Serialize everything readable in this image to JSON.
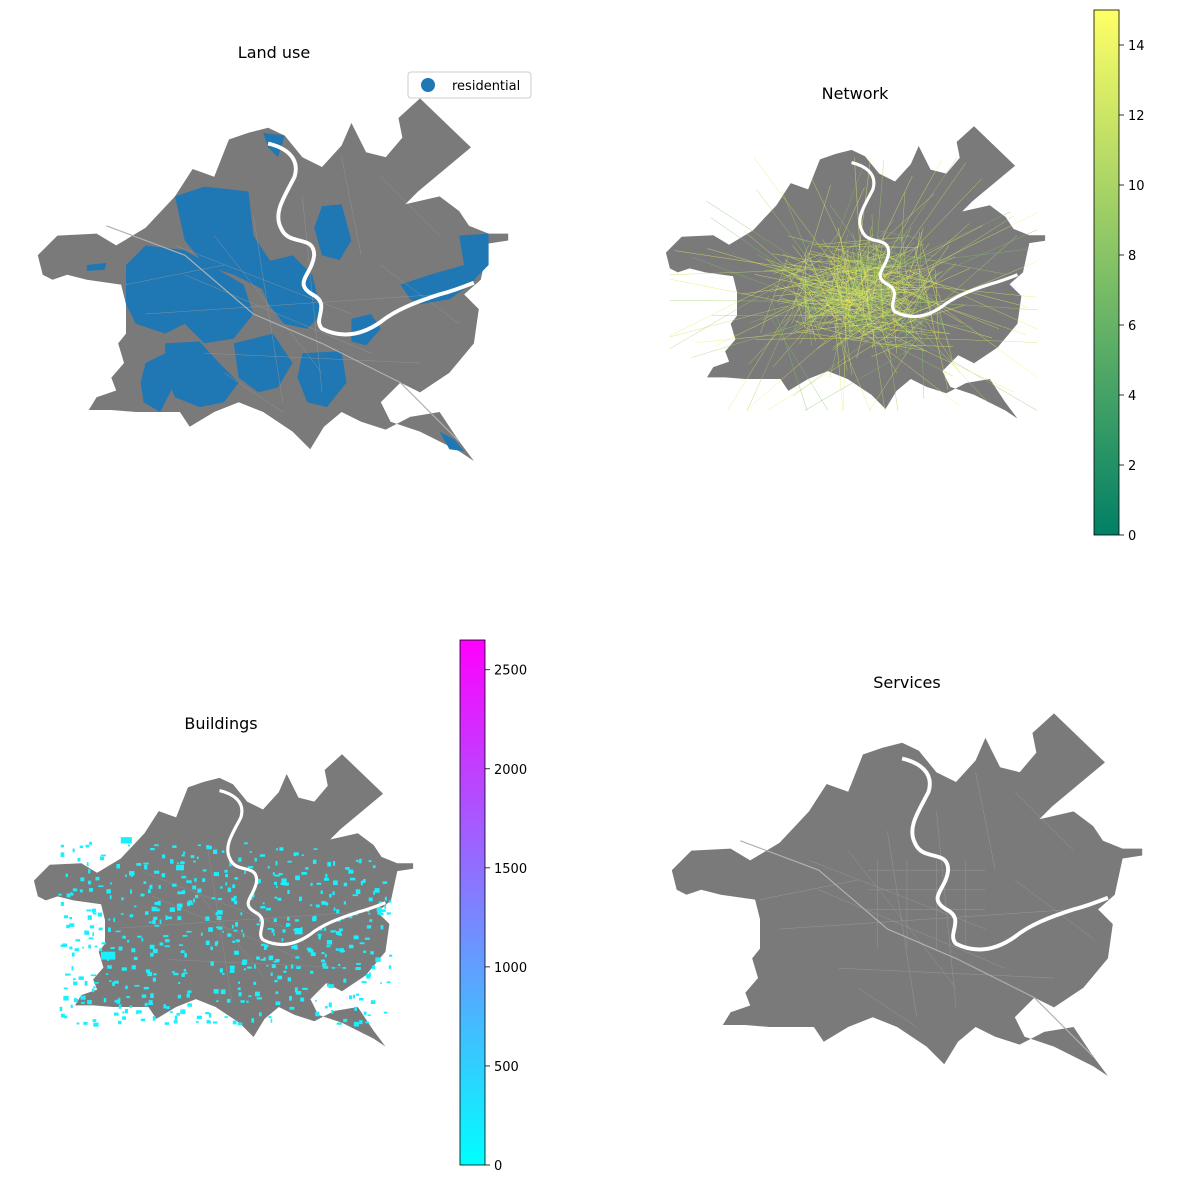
{
  "panels": {
    "land_use": {
      "title": "Land use",
      "legend": [
        "residential"
      ]
    },
    "network": {
      "title": "Network"
    },
    "buildings": {
      "title": "Buildings"
    },
    "services": {
      "title": "Services"
    }
  },
  "colorbars": {
    "network": {
      "colormap": "summer",
      "range": [
        0,
        15
      ],
      "ticks": [
        "0",
        "2",
        "4",
        "6",
        "8",
        "10",
        "12",
        "14"
      ]
    },
    "buildings": {
      "colormap": "cool",
      "range": [
        0,
        2650
      ],
      "ticks": [
        "0",
        "500",
        "1000",
        "1500",
        "2000",
        "2500"
      ]
    }
  },
  "colors": {
    "city": "#7a7a7a",
    "residential": "#1f77b4",
    "network_lines": "#d4e85a",
    "buildings": "#19f0ff",
    "river": "#ffffff"
  }
}
